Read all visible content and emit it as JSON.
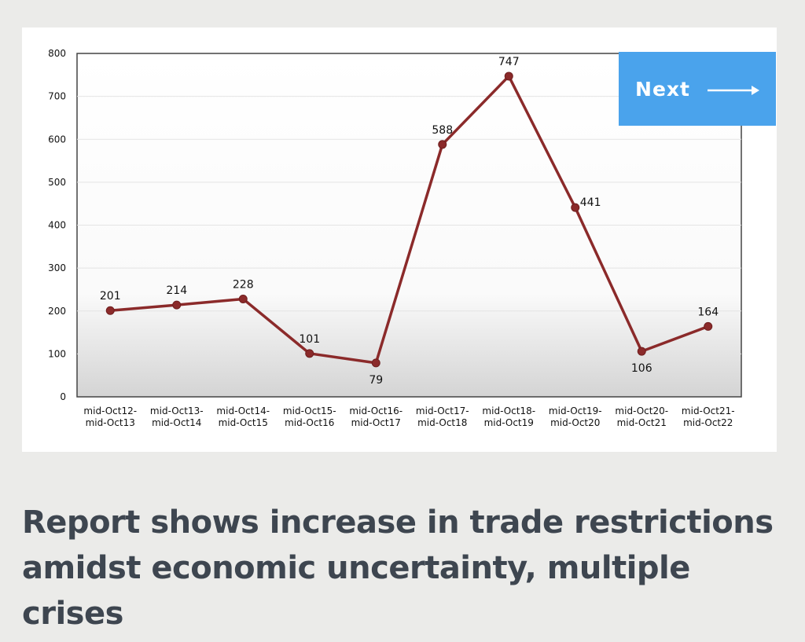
{
  "chart_data": {
    "type": "line",
    "categories": [
      [
        "mid-Oct12-",
        "mid-Oct13"
      ],
      [
        "mid-Oct13-",
        "mid-Oct14"
      ],
      [
        "mid-Oct14-",
        "mid-Oct15"
      ],
      [
        "mid-Oct15-",
        "mid-Oct16"
      ],
      [
        "mid-Oct16-",
        "mid-Oct17"
      ],
      [
        "mid-Oct17-",
        "mid-Oct18"
      ],
      [
        "mid-Oct18-",
        "mid-Oct19"
      ],
      [
        "mid-Oct19-",
        "mid-Oct20"
      ],
      [
        "mid-Oct20-",
        "mid-Oct21"
      ],
      [
        "mid-Oct21-",
        "mid-Oct22"
      ]
    ],
    "values": [
      201,
      214,
      228,
      101,
      79,
      588,
      747,
      441,
      106,
      164
    ],
    "label_position": [
      "above",
      "above",
      "above",
      "above",
      "below",
      "above",
      "above",
      "right",
      "below",
      "above"
    ],
    "yticks": [
      "0",
      "100",
      "200",
      "300",
      "400",
      "500",
      "600",
      "700",
      "800"
    ],
    "ylim": [
      0,
      800
    ],
    "title": "",
    "xlabel": "",
    "ylabel": "",
    "grid": true,
    "legend": "none",
    "line_color": "#8b2a2a"
  },
  "next_button": {
    "label": "Next",
    "arrow": "⟶",
    "icon": "right-arrow-icon",
    "color": "#4aa3ec"
  },
  "headline": "Report shows increase in trade restrictions amidst economic uncertainty, multiple crises"
}
